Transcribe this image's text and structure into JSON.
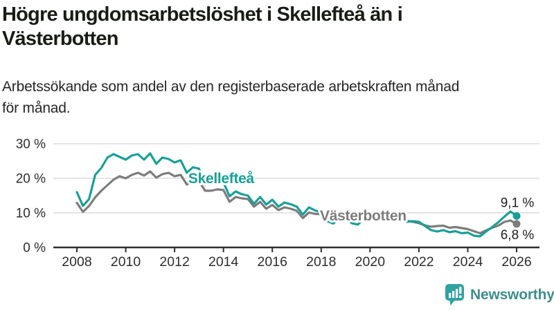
{
  "header": {
    "title_lines": [
      "Högre ungdomsarbetslöshet i Skellefteå än i",
      "Västerbotten"
    ],
    "subtitle_lines": [
      "Arbetssökande som andel av den registerbaserade arbetskraften månad",
      "för månad."
    ]
  },
  "branding": {
    "logo_text": "Newsworthy",
    "logo_icon": "bar-chart-speech-bubble",
    "icon_color": "#2ea3a0",
    "text_color": "#3d8e8d"
  },
  "colors": {
    "skelleftea": "#17a098",
    "vasterbotten": "#7c7c7c",
    "gridline": "#dcdcdc",
    "axis": "#2e2e2e",
    "tick_label": "#2d2d2d",
    "value_label": "#1f1f1f",
    "background": "#ffffff"
  },
  "chart_data": {
    "type": "line",
    "title": "",
    "xlabel": "",
    "ylabel": "",
    "grid": "horizontal",
    "legend_position": "inline-labels",
    "ylim": [
      0,
      31.5
    ],
    "xlim": [
      2007.0,
      2026.9
    ],
    "y_ticks": [
      {
        "value": 0,
        "label": "0 %"
      },
      {
        "value": 10,
        "label": "10 %"
      },
      {
        "value": 20,
        "label": "20 %"
      },
      {
        "value": 30,
        "label": "30 %"
      }
    ],
    "x_ticks": [
      2008,
      2010,
      2012,
      2014,
      2016,
      2018,
      2020,
      2022,
      2024,
      2026
    ],
    "x": [
      2008.0,
      2008.25,
      2008.5,
      2008.75,
      2009.0,
      2009.25,
      2009.5,
      2009.75,
      2010.0,
      2010.25,
      2010.5,
      2010.75,
      2011.0,
      2011.25,
      2011.5,
      2011.75,
      2012.0,
      2012.25,
      2012.5,
      2012.75,
      2013.0,
      2013.25,
      2013.5,
      2013.75,
      2014.0,
      2014.25,
      2014.5,
      2014.75,
      2015.0,
      2015.25,
      2015.5,
      2015.75,
      2016.0,
      2016.25,
      2016.5,
      2016.75,
      2017.0,
      2017.25,
      2017.5,
      2017.75,
      2018.0,
      2018.25,
      2018.5,
      2018.75,
      2019.0,
      2019.25,
      2019.5,
      2019.75,
      2020.0,
      2020.25,
      2020.5,
      2020.75,
      2021.0,
      2021.25,
      2021.5,
      2021.75,
      2022.0,
      2022.25,
      2022.5,
      2022.75,
      2023.0,
      2023.25,
      2023.5,
      2023.75,
      2024.0,
      2024.25,
      2024.5,
      2024.75,
      2025.0,
      2025.25,
      2025.5,
      2025.75,
      2026.0
    ],
    "series": [
      {
        "name": "Skellefteå",
        "color": "#17a098",
        "end_label": "9,1 %",
        "end_value": 9.1,
        "line_label": {
          "text": "Skellefteå",
          "x": 2012.56,
          "y": 18.6
        },
        "values": [
          16.0,
          12.0,
          14.0,
          21.0,
          23.0,
          26.0,
          27.0,
          26.2,
          25.4,
          26.6,
          27.0,
          25.4,
          27.2,
          24.2,
          26.0,
          25.6,
          24.6,
          25.2,
          21.6,
          23.2,
          22.8,
          18.2,
          19.0,
          18.6,
          18.8,
          14.8,
          16.2,
          15.4,
          15.0,
          12.6,
          14.6,
          12.4,
          13.8,
          11.8,
          13.0,
          12.5,
          11.8,
          9.5,
          11.6,
          10.7,
          10.2,
          7.6,
          6.9,
          8.6,
          9.2,
          7.0,
          6.6,
          8.4,
          9.6,
          10.4,
          9.8,
          9.2,
          8.8,
          8.0,
          7.4,
          7.6,
          7.4,
          6.2,
          5.0,
          4.6,
          5.0,
          4.4,
          4.7,
          4.1,
          4.3,
          3.4,
          3.2,
          4.6,
          5.9,
          7.3,
          8.9,
          10.4,
          9.1
        ]
      },
      {
        "name": "Västerbotten",
        "color": "#7c7c7c",
        "end_label": "6,8 %",
        "end_value": 6.8,
        "line_label": {
          "text": "Västerbotten",
          "x": 2017.95,
          "y": 7.8
        },
        "values": [
          12.9,
          10.3,
          12.0,
          14.5,
          16.4,
          18.0,
          19.6,
          20.6,
          20.0,
          21.0,
          21.6,
          20.8,
          22.0,
          20.2,
          21.2,
          21.6,
          20.6,
          21.0,
          18.2,
          19.4,
          19.2,
          16.4,
          16.4,
          16.8,
          16.6,
          13.2,
          14.6,
          14.2,
          14.0,
          11.8,
          13.2,
          11.2,
          12.3,
          10.8,
          11.6,
          11.2,
          10.6,
          8.5,
          10.1,
          9.7,
          9.6,
          8.4,
          8.0,
          8.7,
          9.0,
          8.2,
          7.8,
          8.5,
          9.1,
          9.9,
          9.4,
          9.0,
          8.6,
          8.1,
          7.7,
          7.4,
          7.0,
          6.4,
          6.0,
          6.2,
          6.3,
          5.7,
          5.9,
          5.6,
          5.3,
          4.7,
          4.1,
          4.9,
          5.7,
          6.3,
          7.4,
          7.8,
          6.8
        ]
      }
    ]
  }
}
